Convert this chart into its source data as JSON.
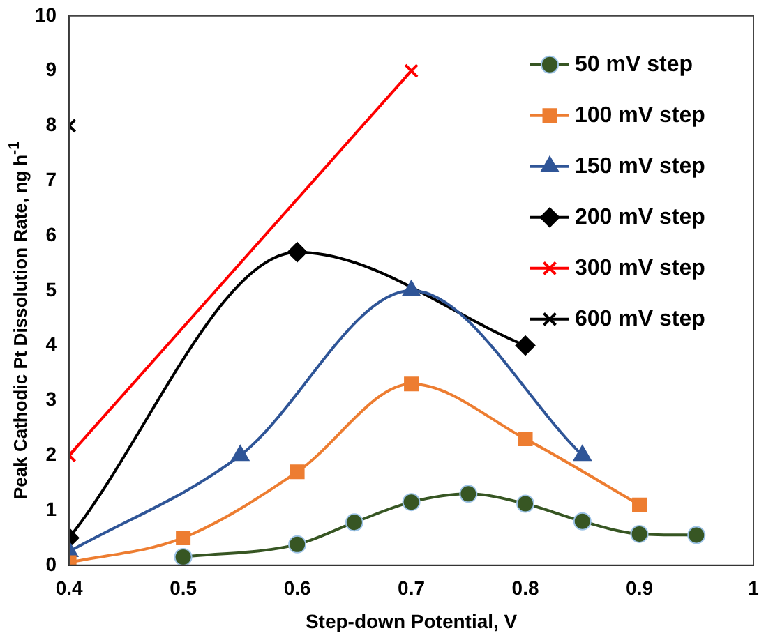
{
  "chart_data": {
    "type": "line",
    "xlabel": "Step-down Potential, V",
    "ylabel": "Peak Cathodic Pt Dissolution Rate, ng h$^{-1}$",
    "xlim": [
      0.4,
      1
    ],
    "xticks": [
      0.4,
      0.5,
      0.6,
      0.7,
      0.8,
      0.9,
      {
        "value": 1,
        "label": "1"
      }
    ],
    "ylim": [
      0,
      10
    ],
    "yticks": [
      0,
      1,
      2,
      3,
      4,
      5,
      6,
      7,
      8,
      9,
      10
    ],
    "grid": false,
    "legend": "top right",
    "line_style": "solid",
    "series": [
      {
        "name": "50 mV step",
        "color": "#375623",
        "marker": "circle",
        "x": [
          0.5,
          0.6,
          0.65,
          0.7,
          0.75,
          0.8,
          0.85,
          0.9,
          0.95
        ],
        "values": [
          0.15,
          0.38,
          0.78,
          1.15,
          1.3,
          1.12,
          0.8,
          0.57,
          0.55
        ]
      },
      {
        "name": "100 mV step",
        "color": "#ed7d31",
        "marker": "square",
        "x": [
          0.4,
          0.5,
          0.6,
          0.7,
          0.8,
          0.9
        ],
        "values": [
          0.05,
          0.5,
          1.7,
          3.3,
          2.3,
          1.1
        ]
      },
      {
        "name": "150 mV step",
        "color": "#2f5597",
        "marker": "triangle",
        "x": [
          0.4,
          0.55,
          0.7,
          0.85
        ],
        "values": [
          0.25,
          2.0,
          5.0,
          2.0
        ]
      },
      {
        "name": "200 mV step",
        "color": "#000000",
        "marker": "diamond",
        "x": [
          0.4,
          0.6,
          0.8
        ],
        "values": [
          0.5,
          5.7,
          4.0
        ]
      },
      {
        "name": "300 mV step",
        "color": "#ff0000",
        "marker": "cross",
        "x": [
          0.4,
          0.7
        ],
        "values": [
          2,
          9
        ]
      },
      {
        "name": "600 mV step",
        "color": "#000000",
        "marker": "cross",
        "x": [
          0.4
        ],
        "values": [
          8
        ]
      }
    ]
  }
}
